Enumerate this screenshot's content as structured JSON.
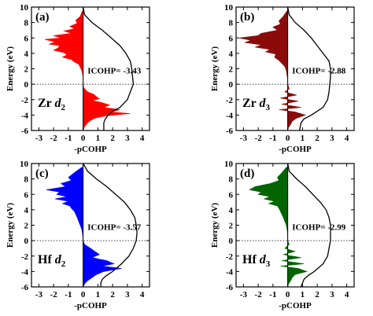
{
  "chart_data": [
    {
      "type": "area",
      "panel": "(a)",
      "ylabel": "Energy (eV)",
      "xlabel": "-pCOHP",
      "xlim": [
        -3.5,
        4.5
      ],
      "ylim": [
        -6,
        10
      ],
      "xticks": [
        -3,
        -2,
        -1,
        0,
        1,
        2,
        3,
        4
      ],
      "yticks": [
        -6,
        -4,
        -2,
        0,
        2,
        4,
        6,
        8,
        10
      ],
      "fermi_level": 0,
      "color": "#ff0000",
      "metal": "Zr",
      "ligand_sym": "d",
      "ligand_sub": "2",
      "annotation": "ICOHP= -3.43",
      "pcohp": {
        "energy": [
          9.5,
          8.8,
          8.3,
          7.9,
          7.5,
          7.2,
          6.9,
          6.6,
          6.3,
          6.0,
          5.8,
          5.5,
          5.2,
          5.0,
          4.7,
          4.4,
          4.1,
          3.8,
          3.5,
          3.2,
          2.9,
          2.6,
          2.2,
          1.8,
          1.4,
          1.0,
          0.5,
          0.0,
          -0.5,
          -1.0,
          -1.3,
          -1.6,
          -1.9,
          -2.1,
          -2.4,
          -2.7,
          -3.0,
          -3.3,
          -3.6,
          -3.8,
          -4.1,
          -4.4,
          -4.7,
          -5.0,
          -5.5,
          -6.0
        ],
        "value": [
          -0.05,
          -0.2,
          -0.5,
          -0.4,
          -0.9,
          -0.6,
          -1.3,
          -0.8,
          -2.0,
          -1.5,
          -2.6,
          -1.9,
          -2.3,
          -1.6,
          -1.7,
          -2.0,
          -1.3,
          -1.1,
          -1.4,
          -0.8,
          -0.6,
          -0.3,
          -0.2,
          -0.1,
          -0.05,
          -0.02,
          0.0,
          0.0,
          0.05,
          0.3,
          0.7,
          0.9,
          1.1,
          0.6,
          1.3,
          1.8,
          1.4,
          2.5,
          1.9,
          3.2,
          1.5,
          0.8,
          0.5,
          0.3,
          0.1,
          0.0
        ]
      },
      "icohp_curve": {
        "energy": [
          10,
          9.0,
          8.0,
          7.0,
          6.0,
          5.0,
          4.0,
          3.0,
          2.0,
          1.0,
          0.0,
          -1.0,
          -2.0,
          -3.0,
          -3.5,
          -4.0,
          -4.5,
          -5.0,
          -6.0
        ],
        "value": [
          0.0,
          0.1,
          0.6,
          1.3,
          1.9,
          2.5,
          2.9,
          3.2,
          3.3,
          3.35,
          3.4,
          3.2,
          3.0,
          2.5,
          2.0,
          1.7,
          1.5,
          1.4,
          1.4
        ]
      }
    },
    {
      "type": "area",
      "panel": "(b)",
      "ylabel": "Energy (eV)",
      "xlabel": "-pCOHP",
      "xlim": [
        -3.5,
        4.5
      ],
      "ylim": [
        -6,
        10
      ],
      "xticks": [
        -3,
        -2,
        -1,
        0,
        1,
        2,
        3,
        4
      ],
      "yticks": [
        -6,
        -4,
        -2,
        0,
        2,
        4,
        6,
        8,
        10
      ],
      "fermi_level": 0,
      "color": "#8b0a0a",
      "metal": "Zr",
      "ligand_sym": "d",
      "ligand_sub": "3",
      "annotation": "ICOHP= -2.88",
      "pcohp": {
        "energy": [
          9.5,
          8.8,
          8.2,
          7.8,
          7.4,
          7.0,
          6.6,
          6.3,
          6.0,
          5.7,
          5.4,
          5.1,
          4.8,
          4.5,
          4.2,
          3.9,
          3.5,
          3.1,
          2.7,
          2.3,
          1.8,
          1.2,
          0.6,
          0.0,
          -0.6,
          -1.0,
          -1.4,
          -1.8,
          -2.2,
          -2.6,
          -3.0,
          -3.3,
          -3.6,
          -4.0,
          -4.4,
          -4.8,
          -5.2,
          -5.6,
          -6.0
        ],
        "value": [
          -0.05,
          -0.3,
          -0.6,
          -0.5,
          -1.0,
          -0.7,
          -1.8,
          -2.0,
          -3.3,
          -2.5,
          -2.9,
          -1.8,
          -2.2,
          -1.2,
          -1.5,
          -0.8,
          -0.9,
          -0.6,
          -0.4,
          -0.2,
          -0.1,
          -0.05,
          0.0,
          0.0,
          0.1,
          -0.2,
          0.6,
          -0.5,
          0.7,
          -0.4,
          0.9,
          -0.6,
          0.5,
          1.2,
          0.6,
          0.3,
          0.2,
          0.05,
          0.0
        ]
      },
      "icohp_curve": {
        "energy": [
          10,
          9.0,
          8.0,
          7.0,
          6.0,
          5.0,
          4.0,
          3.0,
          2.0,
          1.0,
          0.0,
          -1.0,
          -2.0,
          -3.0,
          -4.0,
          -4.5,
          -5.0,
          -6.0
        ],
        "value": [
          0.0,
          0.1,
          0.5,
          1.1,
          1.6,
          2.0,
          2.4,
          2.8,
          2.9,
          2.9,
          2.85,
          2.8,
          2.7,
          2.4,
          1.6,
          1.1,
          0.9,
          0.8
        ]
      }
    },
    {
      "type": "area",
      "panel": "(c)",
      "ylabel": "Energy (eV)",
      "xlabel": "-pCOHP",
      "xlim": [
        -3.5,
        4.5
      ],
      "ylim": [
        -6,
        10
      ],
      "xticks": [
        -3,
        -2,
        -1,
        0,
        1,
        2,
        3,
        4
      ],
      "yticks": [
        -6,
        -4,
        -2,
        0,
        2,
        4,
        6,
        8,
        10
      ],
      "fermi_level": 0,
      "color": "#0000ff",
      "metal": "Hf",
      "ligand_sym": "d",
      "ligand_sub": "2",
      "annotation": "ICOHP= -3.57",
      "pcohp": {
        "energy": [
          9.5,
          8.8,
          8.2,
          7.8,
          7.4,
          7.0,
          6.6,
          6.3,
          6.0,
          5.7,
          5.4,
          5.1,
          4.8,
          4.5,
          4.2,
          3.8,
          3.4,
          3.0,
          2.5,
          2.0,
          1.5,
          1.0,
          0.5,
          0.0,
          -0.5,
          -1.0,
          -1.4,
          -1.8,
          -2.2,
          -2.6,
          -3.0,
          -3.3,
          -3.6,
          -4.0,
          -4.4,
          -4.8,
          -5.2,
          -5.6,
          -6.0
        ],
        "value": [
          -0.1,
          -0.6,
          -1.0,
          -0.8,
          -1.5,
          -1.2,
          -2.5,
          -1.6,
          -1.8,
          -1.1,
          -1.9,
          -1.0,
          -1.4,
          -0.9,
          -0.8,
          -0.6,
          -0.5,
          -0.4,
          -0.3,
          -0.2,
          -0.1,
          -0.05,
          -0.02,
          0.0,
          0.1,
          0.5,
          0.8,
          1.1,
          0.6,
          1.6,
          2.1,
          1.3,
          2.6,
          1.4,
          0.9,
          0.6,
          0.3,
          0.1,
          0.0
        ]
      },
      "icohp_curve": {
        "energy": [
          10,
          9.0,
          8.0,
          7.0,
          6.0,
          5.0,
          4.0,
          3.0,
          2.0,
          1.0,
          0.0,
          -1.0,
          -2.0,
          -3.0,
          -4.0,
          -4.5,
          -5.0,
          -5.5,
          -6.0
        ],
        "value": [
          0.0,
          0.3,
          0.9,
          1.6,
          2.2,
          2.8,
          3.2,
          3.5,
          3.6,
          3.65,
          3.6,
          3.4,
          3.1,
          2.6,
          2.0,
          1.6,
          1.3,
          1.2,
          1.2
        ]
      }
    },
    {
      "type": "area",
      "panel": "(d)",
      "ylabel": "Energy (eV)",
      "xlabel": "-pCOHP",
      "xlim": [
        -3.5,
        4.5
      ],
      "ylim": [
        -6,
        10
      ],
      "xticks": [
        -3,
        -2,
        -1,
        0,
        1,
        2,
        3,
        4
      ],
      "yticks": [
        -6,
        -4,
        -2,
        0,
        2,
        4,
        6,
        8,
        10
      ],
      "fermi_level": 0,
      "color": "#006400",
      "metal": "Hf",
      "ligand_sym": "d",
      "ligand_sub": "3",
      "annotation": "ICOHP= -2.99",
      "pcohp": {
        "energy": [
          9.5,
          8.8,
          8.2,
          7.8,
          7.4,
          7.0,
          6.6,
          6.3,
          6.0,
          5.7,
          5.4,
          5.1,
          4.8,
          4.5,
          4.2,
          3.8,
          3.4,
          3.0,
          2.5,
          2.0,
          1.5,
          1.0,
          0.5,
          0.0,
          -0.5,
          -1.0,
          -1.4,
          -1.8,
          -2.2,
          -2.6,
          -3.0,
          -3.3,
          -3.6,
          -4.0,
          -4.4,
          -4.8,
          -5.2,
          -5.6,
          -6.0
        ],
        "value": [
          -0.1,
          -0.4,
          -0.7,
          -0.6,
          -1.2,
          -2.2,
          -2.6,
          -1.8,
          -2.0,
          -1.2,
          -1.6,
          -0.9,
          -1.3,
          -0.7,
          -0.6,
          -0.5,
          -0.4,
          -0.3,
          -0.2,
          -0.1,
          -0.05,
          -0.02,
          0.0,
          0.0,
          0.1,
          -0.2,
          0.5,
          -0.3,
          0.9,
          -0.4,
          1.1,
          -0.5,
          0.7,
          1.3,
          0.5,
          0.3,
          0.2,
          0.05,
          0.0
        ]
      },
      "icohp_curve": {
        "energy": [
          10,
          9.0,
          8.0,
          7.0,
          6.0,
          5.0,
          4.0,
          3.0,
          2.0,
          1.0,
          0.0,
          -1.0,
          -2.0,
          -3.0,
          -4.0,
          -4.5,
          -5.0,
          -5.5,
          -6.0
        ],
        "value": [
          0.0,
          0.1,
          0.6,
          1.2,
          1.7,
          2.2,
          2.6,
          2.8,
          2.9,
          2.9,
          2.9,
          2.8,
          2.7,
          2.4,
          1.8,
          1.4,
          1.1,
          1.0,
          0.9
        ]
      }
    }
  ]
}
